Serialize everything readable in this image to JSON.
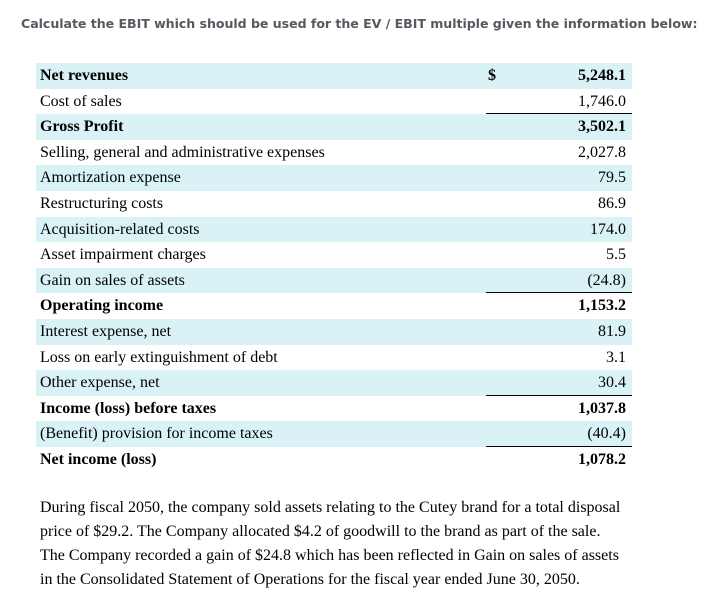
{
  "question": "Calculate the EBIT which should be used for the EV / EBIT multiple given the information below:",
  "statement": {
    "currency_symbol": "$",
    "rows": [
      {
        "label": "Net revenues",
        "value": "5,248.1"
      },
      {
        "label": "Cost of sales",
        "value": "1,746.0"
      },
      {
        "label": "Gross Profit",
        "value": "3,502.1"
      },
      {
        "label": "Selling, general and administrative expenses",
        "value": "2,027.8"
      },
      {
        "label": "Amortization expense",
        "value": "79.5"
      },
      {
        "label": "Restructuring costs",
        "value": "86.9"
      },
      {
        "label": "Acquisition-related costs",
        "value": "174.0"
      },
      {
        "label": "Asset impairment charges",
        "value": "5.5"
      },
      {
        "label": "Gain on sales of assets",
        "value": "(24.8)"
      },
      {
        "label": "Operating income",
        "value": "1,153.2"
      },
      {
        "label": "Interest expense, net",
        "value": "81.9"
      },
      {
        "label": "Loss on early extinguishment of debt",
        "value": "3.1"
      },
      {
        "label": "Other expense, net",
        "value": "30.4"
      },
      {
        "label": "Income (loss) before taxes",
        "value": "1,037.8"
      },
      {
        "label": "(Benefit) provision for income taxes",
        "value": "(40.4)"
      },
      {
        "label": "Net income (loss)",
        "value": "1,078.2"
      }
    ]
  },
  "note": {
    "lines": [
      "During fiscal 2050, the company sold assets relating to the Cutey brand for a total disposal",
      "price of $29.2. The Company allocated $4.2 of goodwill to the brand as part of the sale.",
      "The Company recorded a gain of $24.8 which has been reflected in Gain on sales of assets",
      "in the Consolidated Statement of Operations for the fiscal year ended June 30, 2050."
    ]
  }
}
